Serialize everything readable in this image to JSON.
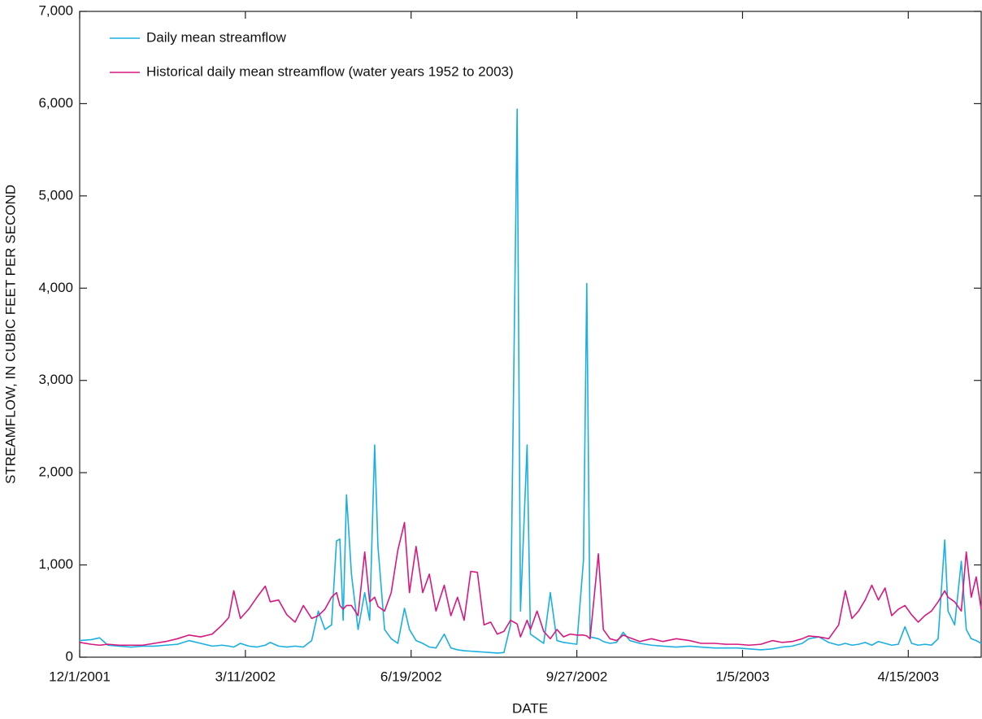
{
  "chart_data": {
    "type": "line",
    "x_label": "DATE",
    "y_label": "STREAMFLOW, IN CUBIC FEET PER SECOND",
    "x": [
      "2001-12-01",
      "2001-12-08",
      "2001-12-13",
      "2001-12-18",
      "2001-12-25",
      "2002-01-01",
      "2002-01-08",
      "2002-01-15",
      "2002-01-22",
      "2002-01-29",
      "2002-02-05",
      "2002-02-12",
      "2002-02-19",
      "2002-02-25",
      "2002-03-01",
      "2002-03-04",
      "2002-03-08",
      "2002-03-13",
      "2002-03-18",
      "2002-03-23",
      "2002-03-26",
      "2002-03-31",
      "2002-04-05",
      "2002-04-10",
      "2002-04-15",
      "2002-04-20",
      "2002-04-24",
      "2002-04-28",
      "2002-05-02",
      "2002-05-05",
      "2002-05-07",
      "2002-05-09",
      "2002-05-11",
      "2002-05-14",
      "2002-05-18",
      "2002-05-22",
      "2002-05-25",
      "2002-05-28",
      "2002-05-30",
      "2002-06-03",
      "2002-06-07",
      "2002-06-11",
      "2002-06-15",
      "2002-06-18",
      "2002-06-22",
      "2002-06-26",
      "2002-06-30",
      "2002-07-04",
      "2002-07-09",
      "2002-07-13",
      "2002-07-17",
      "2002-07-21",
      "2002-07-25",
      "2002-07-29",
      "2002-08-02",
      "2002-08-06",
      "2002-08-10",
      "2002-08-14",
      "2002-08-18",
      "2002-08-22",
      "2002-08-24",
      "2002-08-28",
      "2002-08-30",
      "2002-09-03",
      "2002-09-07",
      "2002-09-11",
      "2002-09-15",
      "2002-09-19",
      "2002-09-23",
      "2002-09-27",
      "2002-10-01",
      "2002-10-03",
      "2002-10-05",
      "2002-10-10",
      "2002-10-13",
      "2002-10-17",
      "2002-10-21",
      "2002-10-25",
      "2002-10-29",
      "2002-11-04",
      "2002-11-11",
      "2002-11-18",
      "2002-11-26",
      "2002-12-04",
      "2002-12-11",
      "2002-12-19",
      "2002-12-26",
      "2003-01-02",
      "2003-01-09",
      "2003-01-16",
      "2003-01-23",
      "2003-01-29",
      "2003-02-04",
      "2003-02-10",
      "2003-02-14",
      "2003-02-20",
      "2003-02-26",
      "2003-03-04",
      "2003-03-08",
      "2003-03-12",
      "2003-03-16",
      "2003-03-20",
      "2003-03-24",
      "2003-03-28",
      "2003-04-01",
      "2003-04-05",
      "2003-04-09",
      "2003-04-13",
      "2003-04-17",
      "2003-04-21",
      "2003-04-25",
      "2003-04-29",
      "2003-05-03",
      "2003-05-07",
      "2003-05-09",
      "2003-05-13",
      "2003-05-17",
      "2003-05-20",
      "2003-05-23",
      "2003-05-26",
      "2003-05-29"
    ],
    "series": [
      {
        "name": "Daily mean streamflow",
        "color": "#1aafe0",
        "values": [
          180,
          190,
          210,
          130,
          120,
          110,
          120,
          120,
          130,
          140,
          180,
          150,
          120,
          130,
          120,
          110,
          150,
          120,
          110,
          130,
          160,
          120,
          110,
          120,
          110,
          180,
          500,
          300,
          350,
          1260,
          1280,
          400,
          1760,
          900,
          300,
          700,
          400,
          2300,
          1200,
          300,
          200,
          150,
          530,
          300,
          180,
          150,
          110,
          100,
          250,
          100,
          80,
          70,
          65,
          60,
          55,
          50,
          45,
          50,
          350,
          5940,
          500,
          2300,
          250,
          200,
          150,
          700,
          180,
          160,
          150,
          140,
          1050,
          4050,
          220,
          200,
          170,
          150,
          160,
          270,
          180,
          150,
          130,
          120,
          110,
          120,
          110,
          100,
          100,
          100,
          90,
          80,
          90,
          110,
          120,
          150,
          200,
          220,
          160,
          130,
          150,
          130,
          140,
          160,
          130,
          170,
          150,
          130,
          140,
          330,
          150,
          130,
          140,
          130,
          200,
          1270,
          500,
          350,
          1040,
          300,
          200,
          180,
          150
        ]
      },
      {
        "name": "Historical daily mean streamflow (water years 1952 to 2003)",
        "color": "#d6197f",
        "values": [
          160,
          140,
          130,
          140,
          130,
          130,
          130,
          150,
          170,
          200,
          240,
          220,
          250,
          350,
          430,
          720,
          420,
          520,
          650,
          770,
          600,
          620,
          460,
          380,
          560,
          420,
          450,
          520,
          650,
          700,
          560,
          520,
          560,
          560,
          450,
          1140,
          600,
          650,
          550,
          500,
          700,
          1160,
          1460,
          700,
          1200,
          700,
          900,
          500,
          780,
          450,
          650,
          400,
          930,
          920,
          350,
          380,
          250,
          280,
          400,
          360,
          220,
          400,
          300,
          500,
          280,
          200,
          300,
          220,
          250,
          240,
          240,
          230,
          200,
          1120,
          300,
          200,
          180,
          240,
          210,
          170,
          200,
          170,
          200,
          180,
          150,
          150,
          140,
          140,
          130,
          140,
          180,
          160,
          170,
          200,
          230,
          220,
          200,
          350,
          720,
          420,
          500,
          620,
          780,
          620,
          750,
          450,
          520,
          560,
          460,
          380,
          450,
          500,
          600,
          720,
          650,
          600,
          500,
          1140,
          650,
          870,
          520
        ]
      }
    ],
    "xlim": [
      "2001-12-01",
      "2003-05-29"
    ],
    "xticks": [
      {
        "value": "2001-12-01",
        "label": "12/1/2001"
      },
      {
        "value": "2002-03-11",
        "label": "3/11/2002"
      },
      {
        "value": "2002-06-19",
        "label": "6/19/2002"
      },
      {
        "value": "2002-09-27",
        "label": "9/27/2002"
      },
      {
        "value": "2003-01-05",
        "label": "1/5/2003"
      },
      {
        "value": "2003-04-15",
        "label": "4/15/2003"
      }
    ],
    "ylim": [
      0,
      7000
    ],
    "yticks": [
      0,
      {
        "value": 1000,
        "label": "1,000"
      },
      {
        "value": 2000,
        "label": "2,000"
      },
      {
        "value": 3000,
        "label": "3,000"
      },
      {
        "value": 4000,
        "label": "4,000"
      },
      {
        "value": 5000,
        "label": "5,000"
      },
      {
        "value": 6000,
        "label": "6,000"
      },
      {
        "value": 7000,
        "label": "7,000"
      }
    ],
    "legend": "upper left"
  }
}
